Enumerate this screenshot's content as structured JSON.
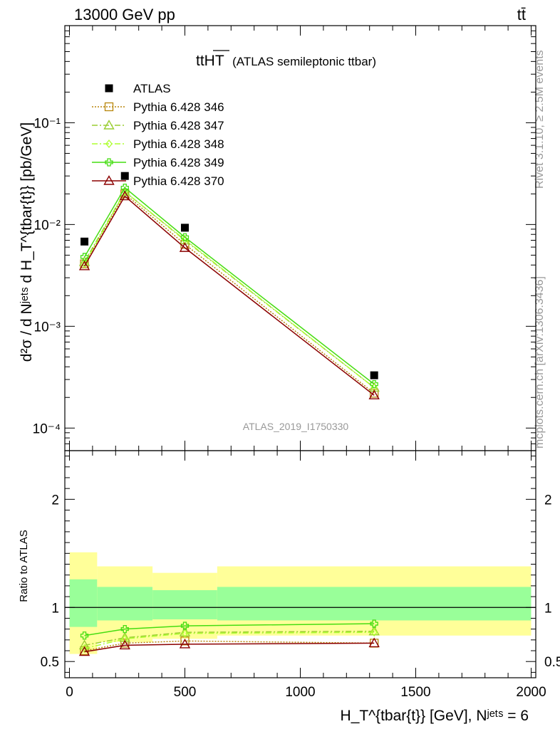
{
  "header": {
    "left": "13000 GeV pp",
    "right": "tt̄"
  },
  "plot_title": {
    "main": "ttHT",
    "sub": "(ATLAS semileptonic ttbar)"
  },
  "watermark": "ATLAS_2019_I1750330",
  "side_labels": {
    "rivet": "Rivet 3.1.10, ≥ 2.5M events",
    "mcplots": "mcplots.cern.ch [arXiv:1306.3436]"
  },
  "labels": {
    "ylabel_top": "d²σ / d Nʲᵉᵗˢ d H_T^{tbar{t}} [pb/GeV]",
    "ylabel_bottom": "Ratio to ATLAS",
    "xlabel": "H_T^{tbar{t}} [GeV], Nʲᵉᵗˢ = 6"
  },
  "colors": {
    "data": "#000000",
    "p346": "#b8860b",
    "p347": "#9acd32",
    "p348": "#adff2f",
    "p349": "#44dd11",
    "p370": "#8b0000",
    "band_inner": "#99ff99",
    "band_outer": "#ffff99"
  },
  "chart_data": [
    {
      "type": "line",
      "scale": "log",
      "xlim": [
        -20,
        2020
      ],
      "ylim": [
        6e-05,
        0.9
      ],
      "yticks": [
        "10⁻⁴",
        "10⁻³",
        "10⁻²",
        "10⁻¹"
      ],
      "x": [
        65,
        240,
        500,
        1320
      ],
      "series": [
        {
          "name": "ATLAS",
          "key": "data",
          "marker": "square",
          "values": [
            0.0068,
            0.03,
            0.0093,
            0.00033
          ]
        },
        {
          "name": "Pythia 6.428 346",
          "key": "p346",
          "marker": "open-square",
          "dash": "dotted",
          "values": [
            0.0041,
            0.02,
            0.0064,
            0.00022
          ]
        },
        {
          "name": "Pythia 6.428 347",
          "key": "p347",
          "marker": "open-triangle",
          "dash": "dashdot",
          "values": [
            0.0043,
            0.021,
            0.007,
            0.00025
          ]
        },
        {
          "name": "Pythia 6.428 348",
          "key": "p348",
          "marker": "diamond",
          "dash": "dashdot",
          "values": [
            0.0041,
            0.021,
            0.0071,
            0.00025
          ]
        },
        {
          "name": "Pythia 6.428 349",
          "key": "p349",
          "marker": "cross",
          "dash": "solid",
          "values": [
            0.0048,
            0.023,
            0.0075,
            0.00027
          ]
        },
        {
          "name": "Pythia 6.428 370",
          "key": "p370",
          "marker": "open-triangle",
          "dash": "solid",
          "values": [
            0.0039,
            0.019,
            0.0059,
            0.00021
          ]
        }
      ]
    },
    {
      "type": "line",
      "xlim": [
        -20,
        2020
      ],
      "ylim": [
        0.35,
        2.45
      ],
      "yticks": [
        0.5,
        1,
        2
      ],
      "xticks": [
        0,
        500,
        1000,
        1500,
        2000
      ],
      "x": [
        65,
        240,
        500,
        1320
      ],
      "bands": [
        {
          "x0": 0,
          "x1": 120,
          "inner": [
            0.82,
            1.26
          ],
          "outer": [
            0.57,
            1.51
          ]
        },
        {
          "x0": 120,
          "x1": 360,
          "inner": [
            0.88,
            1.19
          ],
          "outer": [
            0.68,
            1.38
          ]
        },
        {
          "x0": 360,
          "x1": 640,
          "inner": [
            0.89,
            1.16
          ],
          "outer": [
            0.71,
            1.32
          ]
        },
        {
          "x0": 640,
          "x1": 2000,
          "inner": [
            0.88,
            1.19
          ],
          "outer": [
            0.74,
            1.38
          ]
        }
      ],
      "series": [
        {
          "name": "Pythia 6.428 346",
          "key": "p346",
          "marker": "open-square",
          "dash": "dotted",
          "values": [
            0.6,
            0.67,
            0.69,
            0.67
          ]
        },
        {
          "name": "Pythia 6.428 347",
          "key": "p347",
          "marker": "open-triangle",
          "dash": "dashdot",
          "values": [
            0.65,
            0.72,
            0.77,
            0.78
          ]
        },
        {
          "name": "Pythia 6.428 348",
          "key": "p348",
          "marker": "diamond",
          "dash": "dashdot",
          "values": [
            0.62,
            0.71,
            0.76,
            0.77
          ]
        },
        {
          "name": "Pythia 6.428 349",
          "key": "p349",
          "marker": "cross",
          "dash": "solid",
          "values": [
            0.74,
            0.8,
            0.83,
            0.85
          ]
        },
        {
          "name": "Pythia 6.428 370",
          "key": "p370",
          "marker": "open-triangle",
          "dash": "solid",
          "values": [
            0.59,
            0.65,
            0.66,
            0.67
          ]
        }
      ]
    }
  ]
}
